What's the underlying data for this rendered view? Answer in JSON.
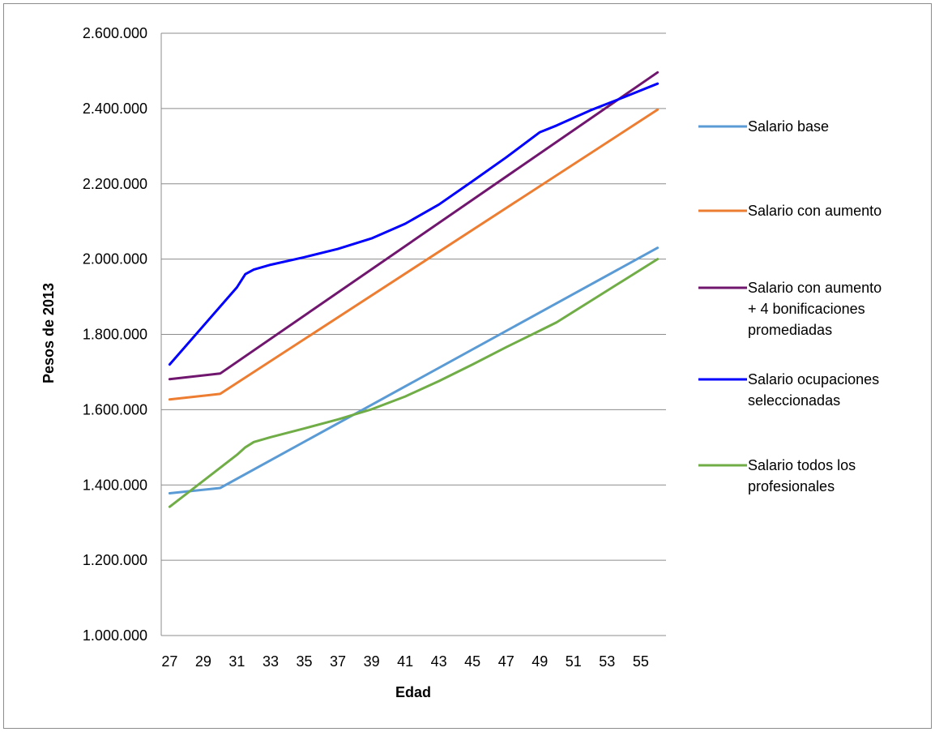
{
  "chart_data": {
    "type": "line",
    "title": "",
    "xlabel": "Edad",
    "ylabel": "Pesos de 2013",
    "xlim": [
      27,
      56
    ],
    "ylim": [
      1000000,
      2600000
    ],
    "x_ticks": [
      "27",
      "29",
      "31",
      "33",
      "35",
      "37",
      "39",
      "41",
      "43",
      "45",
      "47",
      "49",
      "51",
      "53",
      "55"
    ],
    "y_ticks": [
      "1.000.000",
      "1.200.000",
      "1.400.000",
      "1.600.000",
      "1.800.000",
      "2.000.000",
      "2.200.000",
      "2.400.000",
      "2.600.000"
    ],
    "grid": "horizontal",
    "legend_position": "right",
    "series": [
      {
        "name": "Salario base",
        "color": "#5b9bd5",
        "points": [
          [
            27,
            1378000
          ],
          [
            30,
            1392000
          ],
          [
            56,
            2030000
          ]
        ]
      },
      {
        "name": "Salario con aumento",
        "color": "#ed7d31",
        "points": [
          [
            27,
            1627000
          ],
          [
            30,
            1642000
          ],
          [
            56,
            2397000
          ]
        ]
      },
      {
        "name_lines": [
          "Salario con aumento",
          "+ 4 bonificaciones",
          "promediadas"
        ],
        "color": "#70166e",
        "points": [
          [
            27,
            1681000
          ],
          [
            30,
            1696000
          ],
          [
            56,
            2496000
          ]
        ]
      },
      {
        "name_lines": [
          "Salario ocupaciones",
          "seleccionadas"
        ],
        "color": "#0000ff",
        "points": [
          [
            27,
            1720000
          ],
          [
            31,
            1925000
          ],
          [
            31.5,
            1960000
          ],
          [
            32,
            1972000
          ],
          [
            33,
            1985000
          ],
          [
            35,
            2005000
          ],
          [
            37,
            2027000
          ],
          [
            39,
            2055000
          ],
          [
            41,
            2094000
          ],
          [
            43,
            2145000
          ],
          [
            45,
            2207000
          ],
          [
            47,
            2270000
          ],
          [
            49,
            2337000
          ],
          [
            50,
            2355000
          ],
          [
            52,
            2395000
          ],
          [
            54,
            2430000
          ],
          [
            56,
            2466000
          ]
        ]
      },
      {
        "name_lines": [
          "Salario todos los",
          "profesionales"
        ],
        "color": "#70ad47",
        "points": [
          [
            27,
            1342000
          ],
          [
            31,
            1480000
          ],
          [
            31.5,
            1500000
          ],
          [
            32,
            1514000
          ],
          [
            33,
            1527000
          ],
          [
            35,
            1550000
          ],
          [
            37,
            1574000
          ],
          [
            39,
            1601000
          ],
          [
            41,
            1635000
          ],
          [
            43,
            1676000
          ],
          [
            45,
            1720000
          ],
          [
            47,
            1766000
          ],
          [
            49,
            1810000
          ],
          [
            50,
            1832000
          ],
          [
            52,
            1888000
          ],
          [
            54,
            1944000
          ],
          [
            56,
            2000000
          ]
        ]
      }
    ]
  }
}
